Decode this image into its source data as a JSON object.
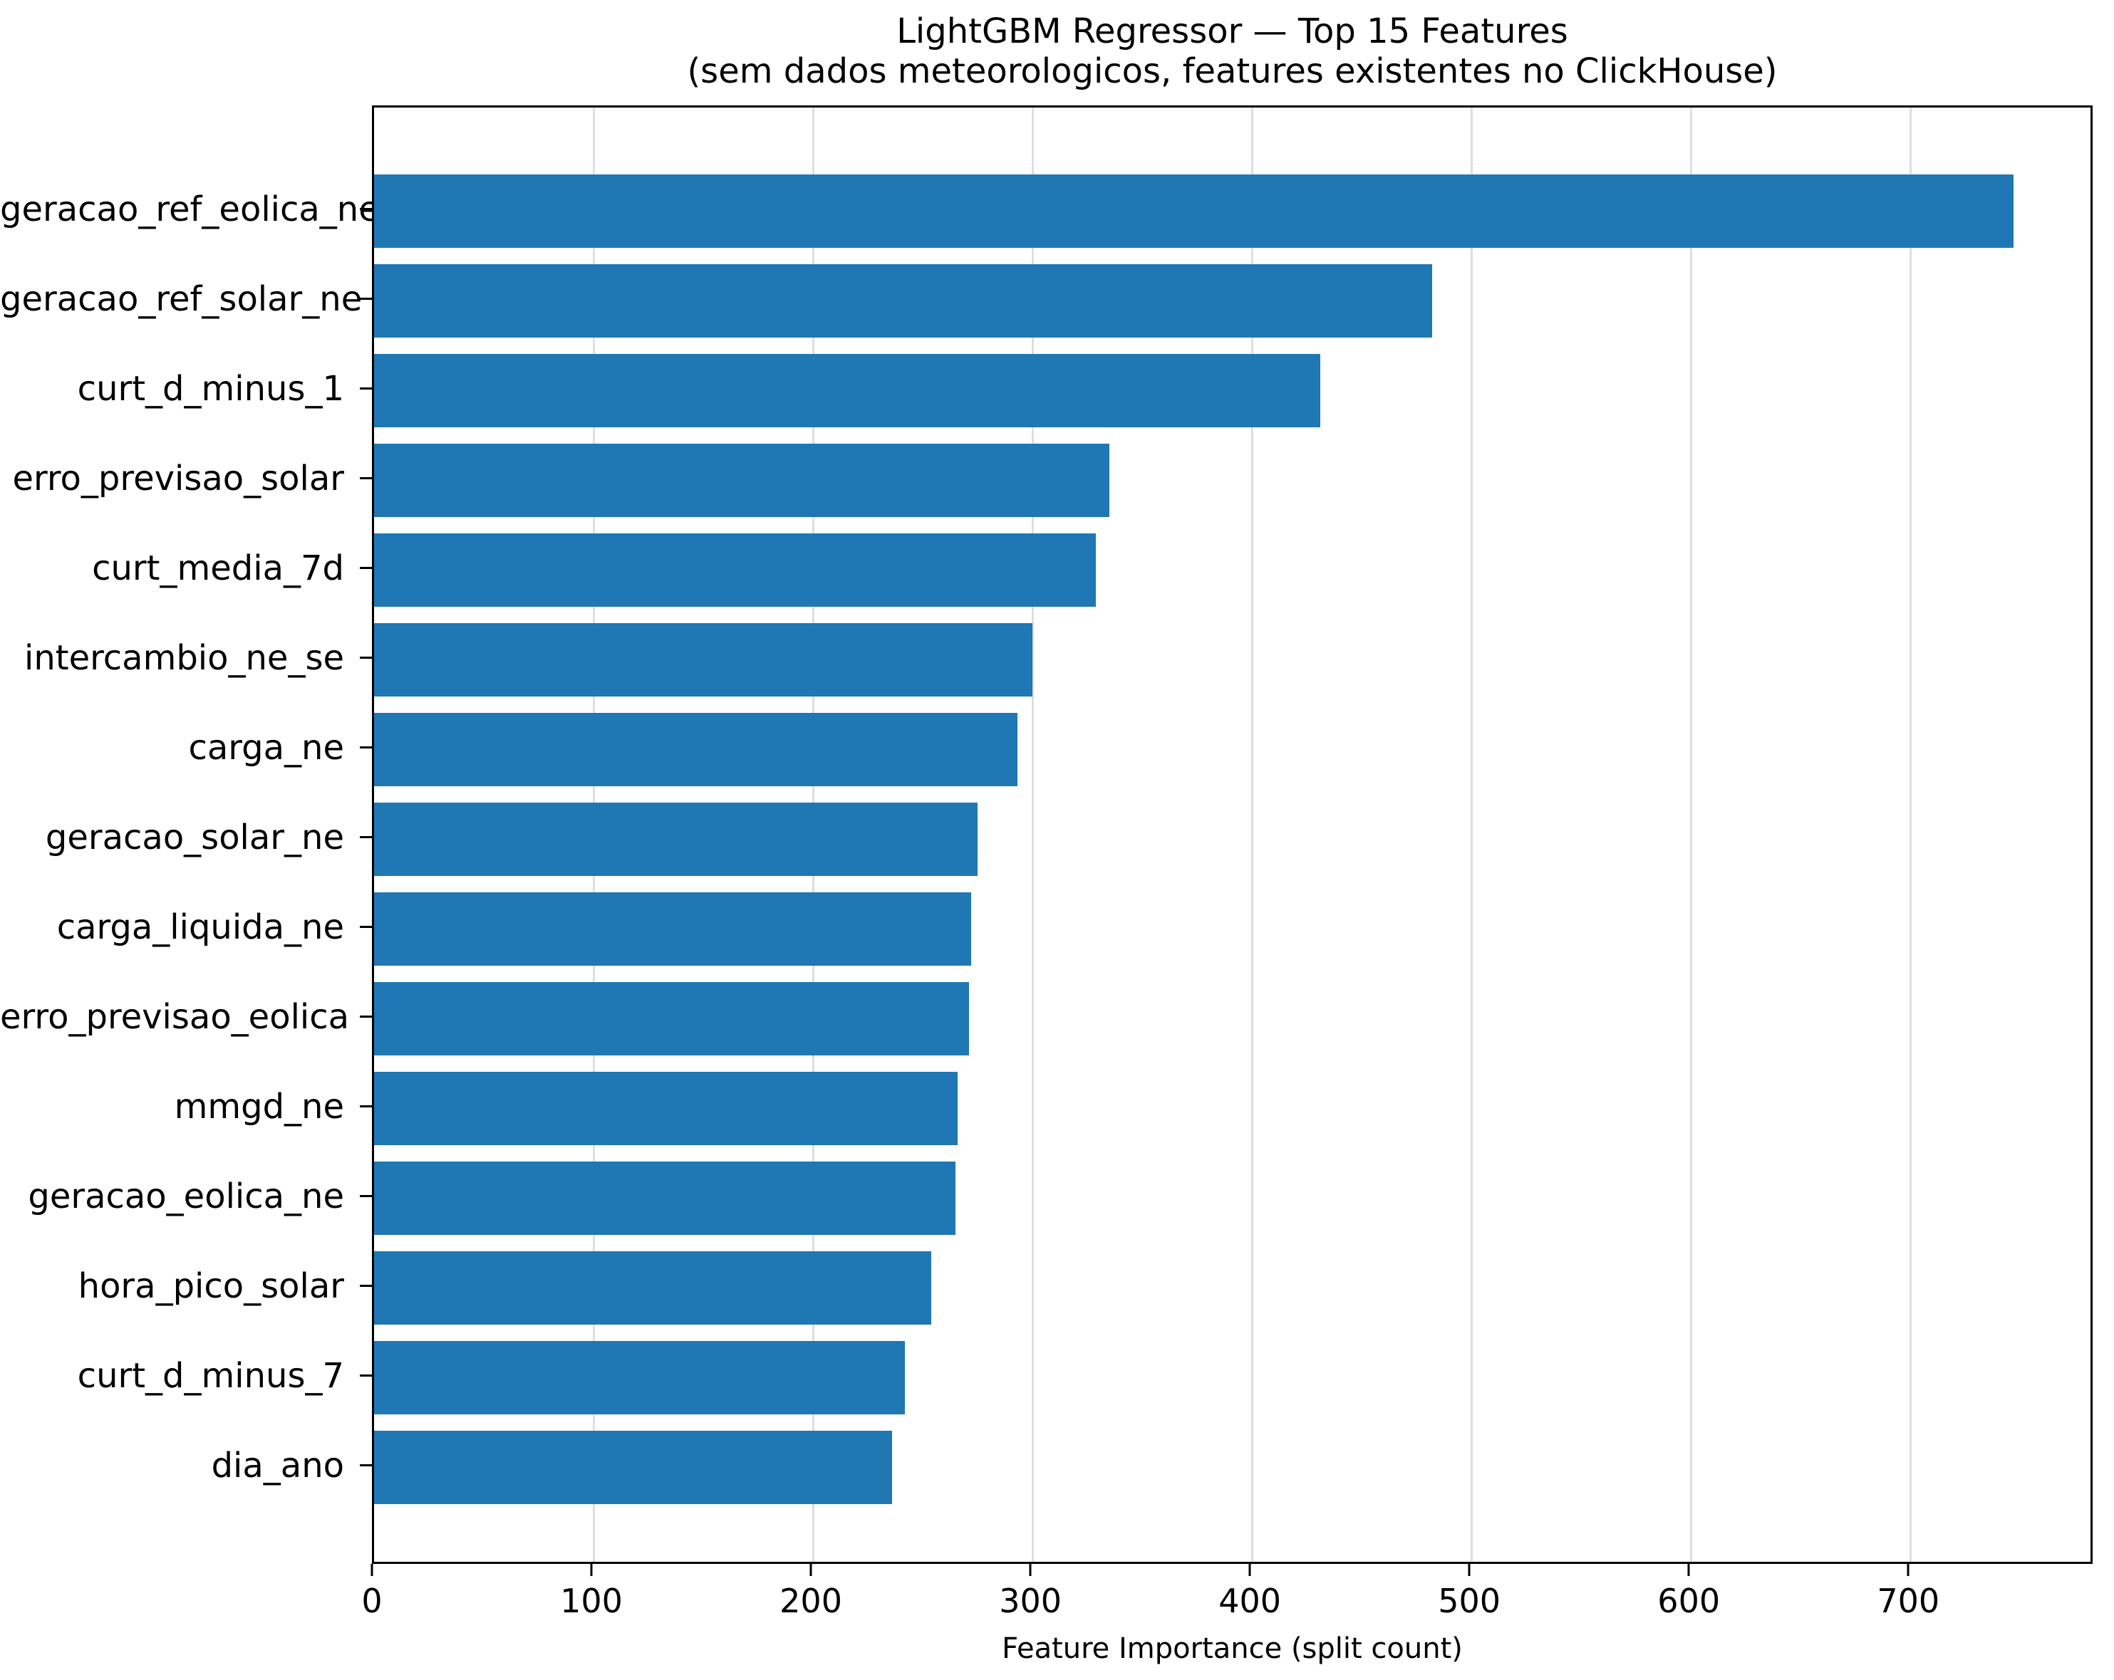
{
  "chart_data": {
    "type": "bar",
    "orientation": "horizontal",
    "title": "LightGBM Regressor — Top 15 Features",
    "subtitle": "(sem dados meteorologicos, features existentes no ClickHouse)",
    "xlabel": "Feature Importance (split count)",
    "categories": [
      "geracao_ref_eolica_ne",
      "geracao_ref_solar_ne",
      "curt_d_minus_1",
      "erro_previsao_solar",
      "curt_media_7d",
      "intercambio_ne_se",
      "carga_ne",
      "geracao_solar_ne",
      "carga_liquida_ne",
      "erro_previsao_eolica",
      "mmgd_ne",
      "geracao_eolica_ne",
      "hora_pico_solar",
      "curt_d_minus_7",
      "dia_ano"
    ],
    "values": [
      747,
      482,
      431,
      335,
      329,
      300,
      293,
      275,
      272,
      271,
      266,
      265,
      254,
      242,
      236
    ],
    "xticks": [
      0,
      100,
      200,
      300,
      400,
      500,
      600,
      700
    ],
    "xlim": [
      0,
      784
    ],
    "grid": true,
    "legend": "none",
    "bar_color": "#1f77b4",
    "grid_color": "#dedede"
  }
}
